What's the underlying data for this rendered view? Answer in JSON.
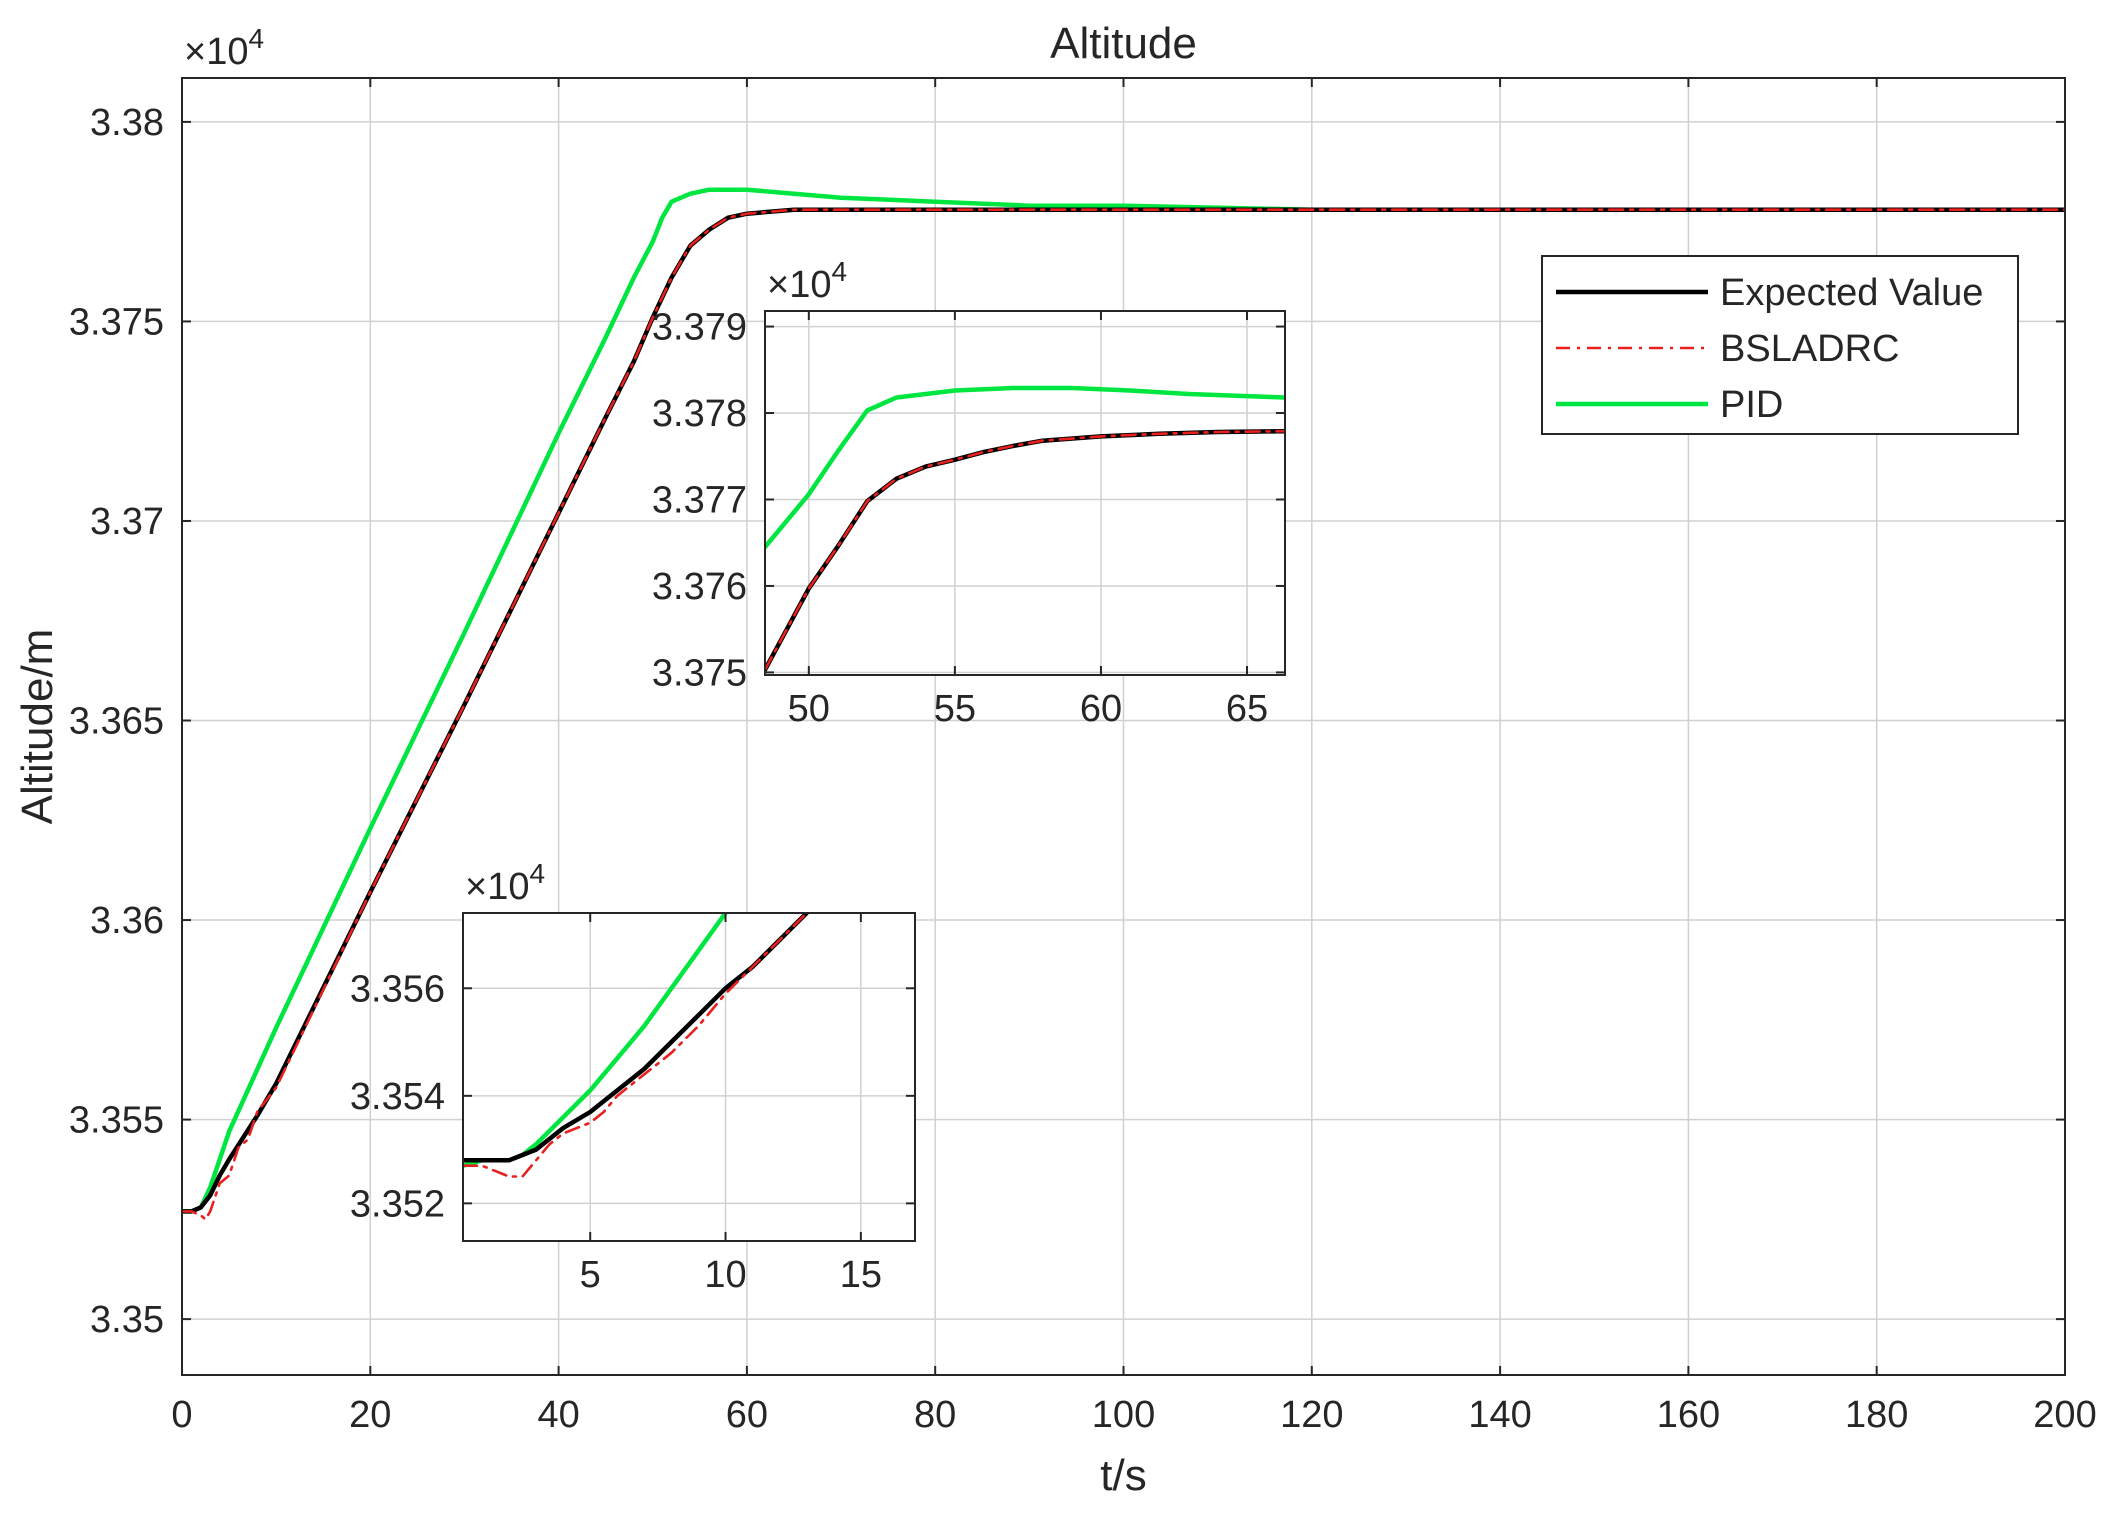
{
  "chart_data": [
    {
      "id": "main",
      "type": "line",
      "title": "Altitude",
      "xlabel": "t/s",
      "ylabel": "Altitude/m",
      "exponent_prefix": "×10",
      "exponent": "4",
      "xlim": [
        0,
        200
      ],
      "ylim": [
        3.3486,
        3.3811
      ],
      "xticks": [
        0,
        20,
        40,
        60,
        80,
        100,
        120,
        140,
        160,
        180,
        200
      ],
      "xtick_labels": [
        "0",
        "20",
        "40",
        "60",
        "80",
        "100",
        "120",
        "140",
        "160",
        "180",
        "200"
      ],
      "yticks": [
        3.35,
        3.355,
        3.36,
        3.365,
        3.37,
        3.375,
        3.38
      ],
      "ytick_labels": [
        "3.35",
        "3.355",
        "3.36",
        "3.365",
        "3.37",
        "3.375",
        "3.38"
      ],
      "grid": true,
      "legend_position": "top-right",
      "series": [
        {
          "name": "Expected Value",
          "color": "#000000",
          "style": "solid",
          "x": [
            0,
            1,
            2,
            3,
            4,
            5,
            8,
            10,
            20,
            30,
            40,
            45,
            48,
            50,
            52,
            54,
            56,
            58,
            60,
            65,
            70,
            80,
            100,
            150,
            200
          ],
          "y": [
            3.3527,
            3.3527,
            3.3528,
            3.3531,
            3.3536,
            3.354,
            3.3551,
            3.3559,
            3.3607,
            3.3654,
            3.3702,
            3.3726,
            3.374,
            3.3751,
            3.3761,
            3.3769,
            3.3773,
            3.3776,
            3.3777,
            3.3778,
            3.3778,
            3.3778,
            3.3778,
            3.3778,
            3.3778
          ]
        },
        {
          "name": "BSLADRC",
          "color": "#e8201e",
          "style": "dashdot",
          "x": [
            0,
            1,
            2,
            2.5,
            3,
            4,
            5,
            6,
            7,
            8,
            10,
            20,
            30,
            40,
            45,
            48,
            50,
            52,
            54,
            56,
            58,
            60,
            65,
            70,
            80,
            100,
            150,
            200
          ],
          "y": [
            3.3527,
            3.3527,
            3.3526,
            3.3525,
            3.3527,
            3.3534,
            3.3536,
            3.3543,
            3.3545,
            3.3552,
            3.3558,
            3.3607,
            3.3654,
            3.3702,
            3.3726,
            3.374,
            3.3751,
            3.3761,
            3.3769,
            3.3773,
            3.3776,
            3.3777,
            3.3778,
            3.3778,
            3.3778,
            3.3778,
            3.3778,
            3.3778
          ]
        },
        {
          "name": "PID",
          "color": "#00e640",
          "style": "solid",
          "x": [
            0,
            1,
            2,
            3,
            4,
            5,
            10,
            20,
            30,
            40,
            45,
            48,
            50,
            51,
            52,
            54,
            56,
            58,
            60,
            65,
            70,
            80,
            90,
            100,
            120,
            150,
            200
          ],
          "y": [
            3.3527,
            3.3527,
            3.3528,
            3.3533,
            3.354,
            3.3547,
            3.3573,
            3.3623,
            3.3672,
            3.3722,
            3.3746,
            3.3761,
            3.377,
            3.3776,
            3.378,
            3.3782,
            3.3783,
            3.3783,
            3.3783,
            3.3782,
            3.3781,
            3.378,
            3.3779,
            3.3779,
            3.3778,
            3.3778,
            3.3778
          ]
        }
      ]
    },
    {
      "id": "inset-top",
      "type": "line",
      "exponent_prefix": "×10",
      "exponent": "4",
      "xlim": [
        48.5,
        66.3
      ],
      "ylim": [
        3.37497,
        3.37918
      ],
      "xticks": [
        50,
        55,
        60,
        65
      ],
      "xtick_labels": [
        "50",
        "55",
        "60",
        "65"
      ],
      "yticks": [
        3.375,
        3.376,
        3.377,
        3.378,
        3.379
      ],
      "ytick_labels": [
        "3.375",
        "3.376",
        "3.377",
        "3.378",
        "3.379"
      ],
      "grid": true,
      "series": [
        {
          "color": "#000000",
          "style": "solid",
          "x": [
            48.5,
            50,
            51,
            52,
            53,
            54,
            55,
            56,
            57,
            58,
            60,
            62,
            64,
            66.3
          ],
          "y": [
            3.37503,
            3.37597,
            3.37646,
            3.37698,
            3.37724,
            3.37738,
            3.37746,
            3.37755,
            3.37762,
            3.37768,
            3.37773,
            3.37776,
            3.37778,
            3.37779
          ]
        },
        {
          "color": "#e8201e",
          "style": "dashdot",
          "x": [
            48.5,
            50,
            51,
            52,
            53,
            54,
            55,
            56,
            57,
            58,
            60,
            62,
            64,
            66.3
          ],
          "y": [
            3.37503,
            3.37597,
            3.37646,
            3.37698,
            3.37724,
            3.37738,
            3.37746,
            3.37755,
            3.37762,
            3.37768,
            3.37773,
            3.37776,
            3.37778,
            3.37779
          ]
        },
        {
          "color": "#00e640",
          "style": "solid",
          "x": [
            48.5,
            50,
            51,
            52,
            53,
            55,
            57,
            59,
            61,
            63,
            66.3
          ],
          "y": [
            3.37645,
            3.37706,
            3.37756,
            3.37803,
            3.37818,
            3.37826,
            3.37829,
            3.37829,
            3.37826,
            3.37822,
            3.37818
          ]
        }
      ]
    },
    {
      "id": "inset-bottom",
      "type": "line",
      "exponent_prefix": "×10",
      "exponent": "4",
      "xlim": [
        0.3,
        17
      ],
      "ylim": [
        3.3513,
        3.3574
      ],
      "xticks": [
        5,
        10,
        15
      ],
      "xtick_labels": [
        "5",
        "10",
        "15"
      ],
      "yticks": [
        3.352,
        3.354,
        3.356
      ],
      "ytick_labels": [
        "3.352",
        "3.354",
        "3.356"
      ],
      "grid": true,
      "series": [
        {
          "color": "#000000",
          "style": "solid",
          "x": [
            0.3,
            1,
            2,
            2.5,
            3,
            4,
            5,
            6,
            7,
            8,
            9,
            10,
            11,
            12,
            13
          ],
          "y": [
            3.3528,
            3.3528,
            3.3528,
            3.3529,
            3.353,
            3.3534,
            3.3537,
            3.3541,
            3.3545,
            3.355,
            3.3555,
            3.356,
            3.3564,
            3.3569,
            3.3574
          ]
        },
        {
          "color": "#e8201e",
          "style": "dashdot",
          "x": [
            0.3,
            1,
            1.5,
            2,
            2.5,
            3,
            3.5,
            4,
            4.5,
            5,
            5.5,
            6,
            6.5,
            7,
            7.5,
            8,
            9,
            10,
            11,
            12,
            13
          ],
          "y": [
            3.3527,
            3.3527,
            3.3526,
            3.3525,
            3.3525,
            3.3528,
            3.3531,
            3.3533,
            3.3534,
            3.3535,
            3.3537,
            3.354,
            3.3542,
            3.3544,
            3.3546,
            3.3548,
            3.3553,
            3.3559,
            3.3564,
            3.3569,
            3.3574
          ]
        },
        {
          "color": "#00e640",
          "style": "solid",
          "x": [
            0.3,
            1,
            2,
            2.5,
            3,
            4,
            5,
            6,
            7,
            8,
            9,
            10,
            11
          ],
          "y": [
            3.3527,
            3.3528,
            3.3528,
            3.3529,
            3.3531,
            3.3536,
            3.3541,
            3.3547,
            3.3553,
            3.356,
            3.3567,
            3.3574,
            3.3581
          ]
        }
      ]
    }
  ]
}
